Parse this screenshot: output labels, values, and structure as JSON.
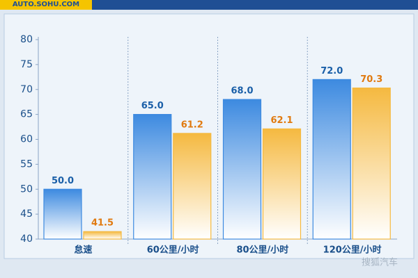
{
  "header": {
    "logo": "AUTO.SOHU.COM"
  },
  "chart_data": {
    "type": "bar",
    "categories": [
      "怠速",
      "60公里/小时",
      "80公里/小时",
      "120公里/小时"
    ],
    "series": [
      {
        "color": "#3d8ae0",
        "values": [
          50,
          65,
          68,
          72
        ],
        "value_labels": [
          "50.0",
          "65.0",
          "68.0",
          "72.0"
        ],
        "label_color": "#1a5fa8"
      },
      {
        "color": "#f5b940",
        "values": [
          41.5,
          61.2,
          62.1,
          70.3
        ],
        "value_labels": [
          "41.5",
          "61.2",
          "62.1",
          "70.3"
        ],
        "label_color": "#e07a10"
      }
    ],
    "ylim": [
      40,
      80
    ],
    "yticks": [
      40,
      45,
      50,
      55,
      60,
      65,
      70,
      75,
      80
    ],
    "grid": false
  },
  "watermark": "搜狐汽车"
}
